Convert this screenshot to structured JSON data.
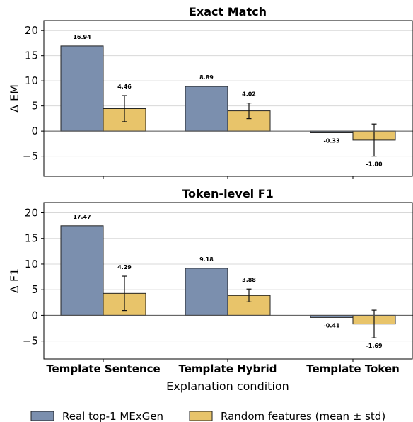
{
  "chart_data": {
    "type": "bar",
    "xlabel": "Explanation condition",
    "categories": [
      "Template Sentence",
      "Template Hybrid",
      "Template Token"
    ],
    "legend": {
      "placement": "bottom",
      "entries": [
        "Real top-1 MExGen",
        "Random features (mean ± std)"
      ]
    },
    "colors": {
      "real": "#7b8fae",
      "random": "#e8c46a",
      "edge": "#222222"
    },
    "panels": [
      {
        "title": "Exact Match",
        "ylabel": "Δ EM",
        "ylim": [
          -9,
          22
        ],
        "yticks": [
          -5,
          0,
          5,
          10,
          15,
          20
        ],
        "grid": true,
        "series": [
          {
            "name": "Real top-1 MExGen",
            "values": [
              16.94,
              8.89,
              -0.33
            ],
            "labels": [
              "16.94",
              "8.89",
              "-0.33"
            ]
          },
          {
            "name": "Random features (mean ± std)",
            "values": [
              4.46,
              4.02,
              -1.8
            ],
            "std": [
              2.6,
              1.55,
              3.2
            ],
            "labels": [
              "4.46",
              "4.02",
              "-1.80"
            ]
          }
        ]
      },
      {
        "title": "Token-level F1",
        "ylabel": "Δ F1",
        "ylim": [
          -8.5,
          22
        ],
        "yticks": [
          -5,
          0,
          5,
          10,
          15,
          20
        ],
        "grid": true,
        "series": [
          {
            "name": "Real top-1 MExGen",
            "values": [
              17.47,
              9.18,
              -0.41
            ],
            "labels": [
              "17.47",
              "9.18",
              "-0.41"
            ]
          },
          {
            "name": "Random features (mean ± std)",
            "values": [
              4.29,
              3.88,
              -1.69
            ],
            "std": [
              3.35,
              1.25,
              2.7
            ],
            "labels": [
              "4.29",
              "3.88",
              "-1.69"
            ]
          }
        ]
      }
    ]
  }
}
